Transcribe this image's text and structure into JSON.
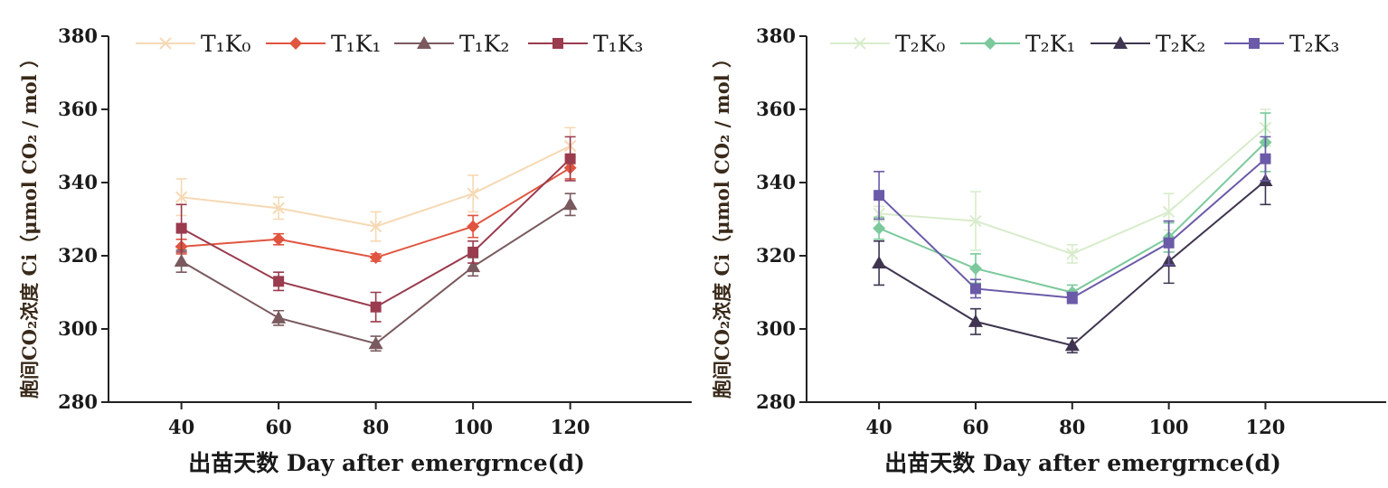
{
  "chart_data": [
    {
      "type": "line",
      "ylabel": "胞间CO₂浓度 Ci（μmol CO₂ / mol ）",
      "xlabel": "出苗天数 Day after emergrnce(d)",
      "x": [
        40,
        60,
        80,
        100,
        120
      ],
      "xticks": [
        "40",
        "60",
        "80",
        "100",
        "120"
      ],
      "xlim": [
        25,
        145
      ],
      "ylim": [
        280,
        380
      ],
      "yticks": [
        "280",
        "300",
        "320",
        "340",
        "360",
        "380"
      ],
      "grid": false,
      "legend_position": "top",
      "series": [
        {
          "name": "T₁K₀",
          "marker": "x",
          "color": "#f6d9b4",
          "values": [
            336,
            333,
            328,
            337,
            350
          ],
          "errors": [
            5,
            3,
            4,
            5,
            5
          ]
        },
        {
          "name": "T₁K₁",
          "marker": "diamond",
          "color": "#e0553f",
          "values": [
            322.5,
            324.5,
            319.5,
            328,
            344
          ],
          "errors": [
            2,
            1.5,
            1,
            3,
            3
          ]
        },
        {
          "name": "T₁K₂",
          "marker": "triangle",
          "color": "#7a5a5e",
          "values": [
            318.5,
            303,
            296,
            317,
            334
          ],
          "errors": [
            3,
            2,
            2,
            2.5,
            3
          ]
        },
        {
          "name": "T₁K₃",
          "marker": "square",
          "color": "#9a3b4e",
          "values": [
            327.5,
            313,
            306,
            321,
            346.5
          ],
          "errors": [
            6.5,
            2.5,
            4,
            3,
            6
          ]
        }
      ]
    },
    {
      "type": "line",
      "ylabel": "胞间CO₂浓度 Ci（μmol CO₂ / mol ）",
      "xlabel": "出苗天数 Day after emergrnce(d)",
      "x": [
        40,
        60,
        80,
        100,
        120
      ],
      "xticks": [
        "40",
        "60",
        "80",
        "100",
        "120"
      ],
      "xlim": [
        25,
        145
      ],
      "ylim": [
        280,
        380
      ],
      "yticks": [
        "280",
        "300",
        "320",
        "340",
        "360",
        "380"
      ],
      "grid": false,
      "legend_position": "top",
      "series": [
        {
          "name": "T₂K₀",
          "marker": "x",
          "color": "#d8eccb",
          "values": [
            331.5,
            329.5,
            320.5,
            332,
            355
          ],
          "errors": [
            2,
            8,
            2.5,
            5,
            5
          ]
        },
        {
          "name": "T₂K₁",
          "marker": "diamond",
          "color": "#7cc99c",
          "values": [
            327.5,
            316.5,
            310,
            325,
            351
          ],
          "errors": [
            3,
            4,
            2,
            4,
            8
          ]
        },
        {
          "name": "T₂K₂",
          "marker": "triangle",
          "color": "#3f3550",
          "values": [
            318,
            302,
            295.5,
            318.5,
            340.5
          ],
          "errors": [
            6,
            3.5,
            2,
            6,
            6.5
          ]
        },
        {
          "name": "T₂K₃",
          "marker": "square",
          "color": "#6a5aa8",
          "values": [
            336.5,
            311,
            308.5,
            323.5,
            346.5
          ],
          "errors": [
            6.5,
            2.5,
            1.5,
            6,
            6
          ]
        }
      ]
    }
  ]
}
